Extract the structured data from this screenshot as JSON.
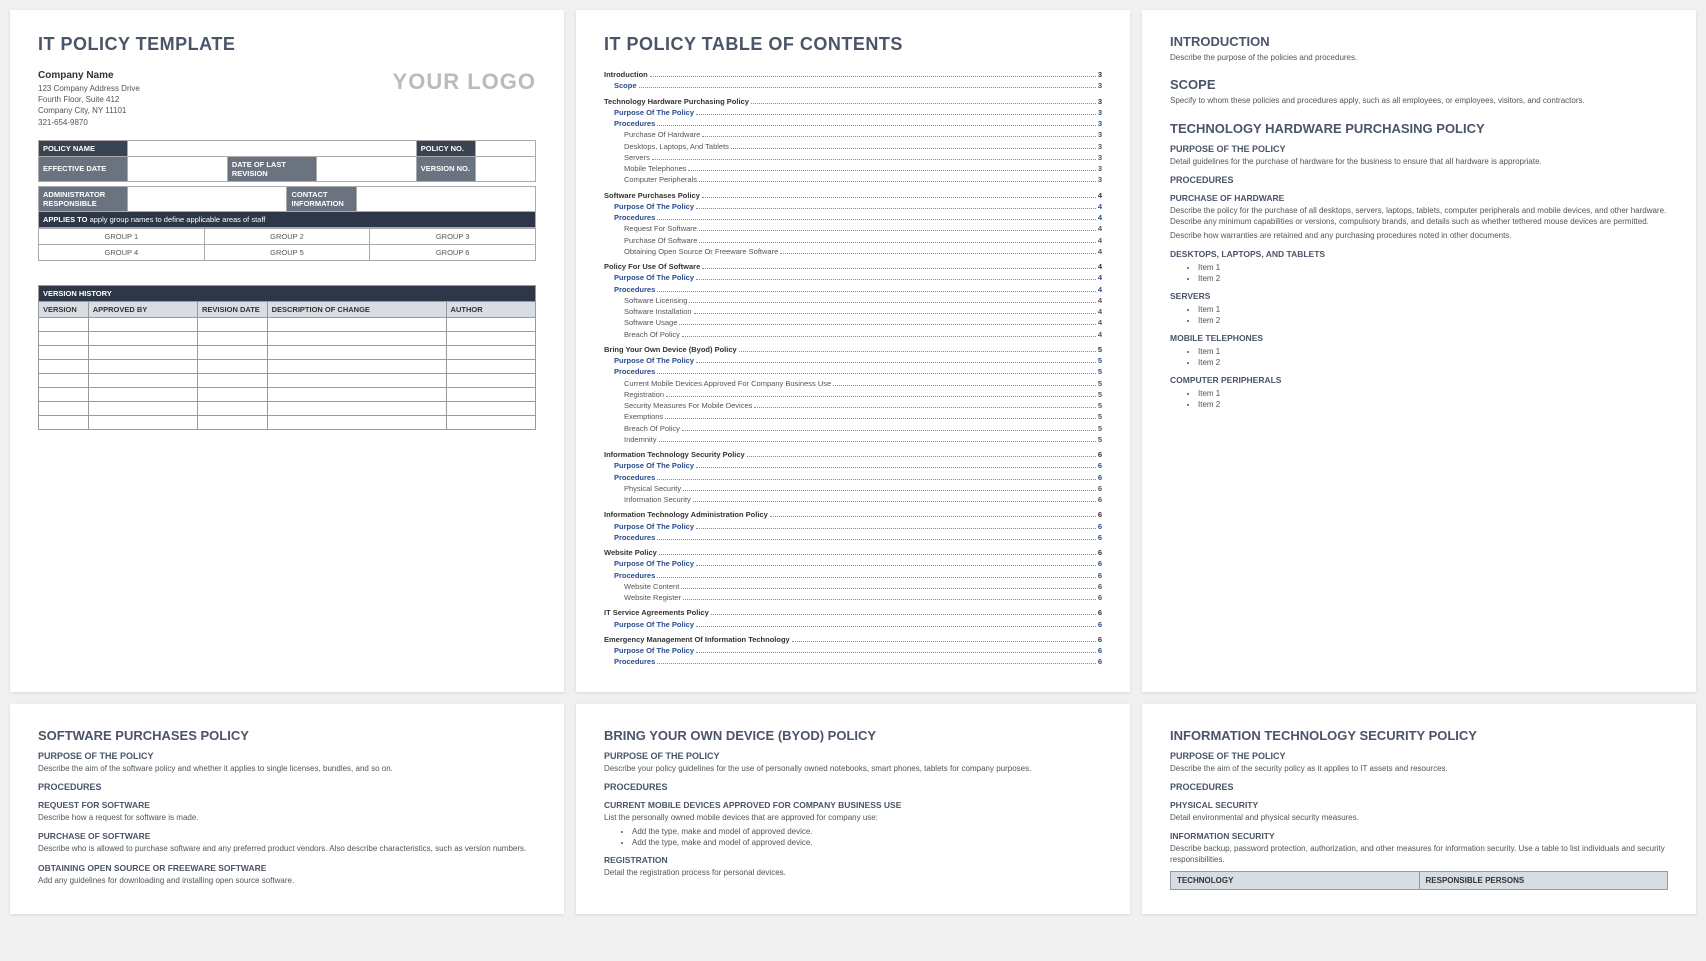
{
  "p1": {
    "title": "IT POLICY TEMPLATE",
    "company": "Company Name",
    "addr1": "123 Company Address Drive",
    "addr2": "Fourth Floor, Suite 412",
    "addr3": "Company City, NY  11101",
    "phone": "321-654-9870",
    "logo": "YOUR LOGO",
    "meta": {
      "policy_name": "POLICY NAME",
      "policy_no": "POLICY NO.",
      "eff_date": "EFFECTIVE DATE",
      "rev_date": "DATE OF LAST REVISION",
      "ver_no": "VERSION NO.",
      "admin": "ADMINISTRATOR RESPONSIBLE",
      "contact": "CONTACT INFORMATION",
      "applies_label": "APPLIES TO",
      "applies_text": "apply group names to define applicable areas of staff",
      "g1": "GROUP 1",
      "g2": "GROUP 2",
      "g3": "GROUP 3",
      "g4": "GROUP 4",
      "g5": "GROUP 5",
      "g6": "GROUP 6"
    },
    "ver": {
      "title": "VERSION HISTORY",
      "c1": "VERSION",
      "c2": "APPROVED BY",
      "c3": "REVISION DATE",
      "c4": "DESCRIPTION OF CHANGE",
      "c5": "AUTHOR"
    }
  },
  "p2": {
    "title": "IT POLICY TABLE OF CONTENTS",
    "toc": [
      {
        "lvl": 0,
        "lbl": "Introduction",
        "pg": "3"
      },
      {
        "lvl": 1,
        "lbl": "Scope",
        "pg": "3"
      },
      {
        "lvl": 0,
        "lbl": "Technology Hardware Purchasing Policy",
        "pg": "3"
      },
      {
        "lvl": 1,
        "lbl": "Purpose Of The Policy",
        "pg": "3"
      },
      {
        "lvl": 1,
        "lbl": "Procedures",
        "pg": "3"
      },
      {
        "lvl": 2,
        "lbl": "Purchase Of Hardware",
        "pg": "3"
      },
      {
        "lvl": 2,
        "lbl": "Desktops, Laptops, And Tablets",
        "pg": "3"
      },
      {
        "lvl": 2,
        "lbl": "Servers",
        "pg": "3"
      },
      {
        "lvl": 2,
        "lbl": "Mobile Telephones",
        "pg": "3"
      },
      {
        "lvl": 2,
        "lbl": "Computer Peripherals",
        "pg": "3"
      },
      {
        "lvl": 0,
        "lbl": "Software Purchases Policy",
        "pg": "4"
      },
      {
        "lvl": 1,
        "lbl": "Purpose Of The Policy",
        "pg": "4"
      },
      {
        "lvl": 1,
        "lbl": "Procedures",
        "pg": "4"
      },
      {
        "lvl": 2,
        "lbl": "Request For Software",
        "pg": "4"
      },
      {
        "lvl": 2,
        "lbl": "Purchase Of Software",
        "pg": "4"
      },
      {
        "lvl": 2,
        "lbl": "Obtaining Open Source Or Freeware Software",
        "pg": "4"
      },
      {
        "lvl": 0,
        "lbl": "Policy For Use Of Software",
        "pg": "4"
      },
      {
        "lvl": 1,
        "lbl": "Purpose Of The Policy",
        "pg": "4"
      },
      {
        "lvl": 1,
        "lbl": "Procedures",
        "pg": "4"
      },
      {
        "lvl": 2,
        "lbl": "Software Licensing",
        "pg": "4"
      },
      {
        "lvl": 2,
        "lbl": "Software Installation",
        "pg": "4"
      },
      {
        "lvl": 2,
        "lbl": "Software Usage",
        "pg": "4"
      },
      {
        "lvl": 2,
        "lbl": "Breach Of Policy",
        "pg": "4"
      },
      {
        "lvl": 0,
        "lbl": "Bring Your Own Device (Byod) Policy",
        "pg": "5"
      },
      {
        "lvl": 1,
        "lbl": "Purpose Of The Policy",
        "pg": "5"
      },
      {
        "lvl": 1,
        "lbl": "Procedures",
        "pg": "5"
      },
      {
        "lvl": 2,
        "lbl": "Current Mobile Devices Approved For Company Business Use",
        "pg": "5"
      },
      {
        "lvl": 2,
        "lbl": "Registration",
        "pg": "5"
      },
      {
        "lvl": 2,
        "lbl": "Security Measures For Mobile Devices",
        "pg": "5"
      },
      {
        "lvl": 2,
        "lbl": "Exemptions",
        "pg": "5"
      },
      {
        "lvl": 2,
        "lbl": "Breach Of Policy",
        "pg": "5"
      },
      {
        "lvl": 2,
        "lbl": "Indemnity",
        "pg": "5"
      },
      {
        "lvl": 0,
        "lbl": "Information Technology Security Policy",
        "pg": "6"
      },
      {
        "lvl": 1,
        "lbl": "Purpose Of The Policy",
        "pg": "6"
      },
      {
        "lvl": 1,
        "lbl": "Procedures",
        "pg": "6"
      },
      {
        "lvl": 2,
        "lbl": "Physical Security",
        "pg": "6"
      },
      {
        "lvl": 2,
        "lbl": "Information Security",
        "pg": "6"
      },
      {
        "lvl": 0,
        "lbl": "Information Technology Administration Policy",
        "pg": "6"
      },
      {
        "lvl": 1,
        "lbl": "Purpose Of The Policy",
        "pg": "6"
      },
      {
        "lvl": 1,
        "lbl": "Procedures",
        "pg": "6"
      },
      {
        "lvl": 0,
        "lbl": "Website Policy",
        "pg": "6"
      },
      {
        "lvl": 1,
        "lbl": "Purpose Of The Policy",
        "pg": "6"
      },
      {
        "lvl": 1,
        "lbl": "Procedures",
        "pg": "6"
      },
      {
        "lvl": 2,
        "lbl": "Website Content",
        "pg": "6"
      },
      {
        "lvl": 2,
        "lbl": "Website Register",
        "pg": "6"
      },
      {
        "lvl": 0,
        "lbl": "IT Service Agreements Policy",
        "pg": "6"
      },
      {
        "lvl": 1,
        "lbl": "Purpose Of The Policy",
        "pg": "6"
      },
      {
        "lvl": 0,
        "lbl": "Emergency Management Of Information Technology",
        "pg": "6"
      },
      {
        "lvl": 1,
        "lbl": "Purpose Of The Policy",
        "pg": "6"
      },
      {
        "lvl": 1,
        "lbl": "Procedures",
        "pg": "6"
      }
    ]
  },
  "p3": {
    "intro_h": "INTRODUCTION",
    "intro_t": "Describe the purpose of the policies and procedures.",
    "scope_h": "SCOPE",
    "scope_t": "Specify to whom these policies and procedures apply, such as all employees, or employees, visitors, and contractors.",
    "thp_h": "TECHNOLOGY HARDWARE PURCHASING POLICY",
    "pop": "PURPOSE OF THE POLICY",
    "pop_t": "Detail guidelines for the purchase of hardware for the business to ensure that all hardware is appropriate.",
    "proc": "PROCEDURES",
    "poh": "PURCHASE OF HARDWARE",
    "poh_t1": "Describe the policy for the purchase of all desktops, servers, laptops, tablets, computer peripherals and mobile devices, and other hardware. Describe any minimum capabilities or versions, compulsory brands, and details such as whether tethered mouse devices are permitted.",
    "poh_t2": "Describe how warranties are retained and any purchasing procedures noted in other documents.",
    "dlt": "DESKTOPS, LAPTOPS, AND TABLETS",
    "srv": "SERVERS",
    "mob": "MOBILE TELEPHONES",
    "cp": "COMPUTER PERIPHERALS",
    "i1": "Item 1",
    "i2": "Item 2"
  },
  "p4": {
    "title": "SOFTWARE PURCHASES POLICY",
    "pop": "PURPOSE OF THE POLICY",
    "pop_t": "Describe the aim of the software policy and whether it applies to single licenses, bundles, and so on.",
    "proc": "PROCEDURES",
    "req": "REQUEST FOR SOFTWARE",
    "req_t": "Describe how a request for software is made.",
    "pur": "PURCHASE OF SOFTWARE",
    "pur_t": "Describe who is allowed to purchase software and any preferred product vendors. Also describe characteristics, such as version numbers.",
    "obt": "OBTAINING OPEN SOURCE OR FREEWARE SOFTWARE",
    "obt_t": "Add any guidelines for downloading and installing open source software."
  },
  "p5": {
    "title": "BRING YOUR OWN DEVICE (BYOD) POLICY",
    "pop": "PURPOSE OF THE POLICY",
    "pop_t": "Describe your policy guidelines for the use of personally owned notebooks, smart phones, tablets for company purposes.",
    "proc": "PROCEDURES",
    "cur": "CURRENT MOBILE DEVICES APPROVED FOR COMPANY BUSINESS USE",
    "cur_t": "List the personally owned mobile devices that are approved for company use:",
    "li1": "Add the type, make and model of approved device.",
    "li2": "Add the type, make and model of approved device.",
    "reg": "REGISTRATION",
    "reg_t": "Detail the registration process for personal devices."
  },
  "p6": {
    "title": "INFORMATION TECHNOLOGY SECURITY POLICY",
    "pop": "PURPOSE OF THE POLICY",
    "pop_t": "Describe the aim of the security policy as it applies to IT assets and resources.",
    "proc": "PROCEDURES",
    "phy": "PHYSICAL SECURITY",
    "phy_t": "Detail environmental and physical security measures.",
    "inf": "INFORMATION SECURITY",
    "inf_t": "Describe backup, password protection, authorization, and other measures for information security. Use a table to list individuals and security responsibilities.",
    "tbl_c1": "TECHNOLOGY",
    "tbl_c2": "RESPONSIBLE PERSONS"
  }
}
